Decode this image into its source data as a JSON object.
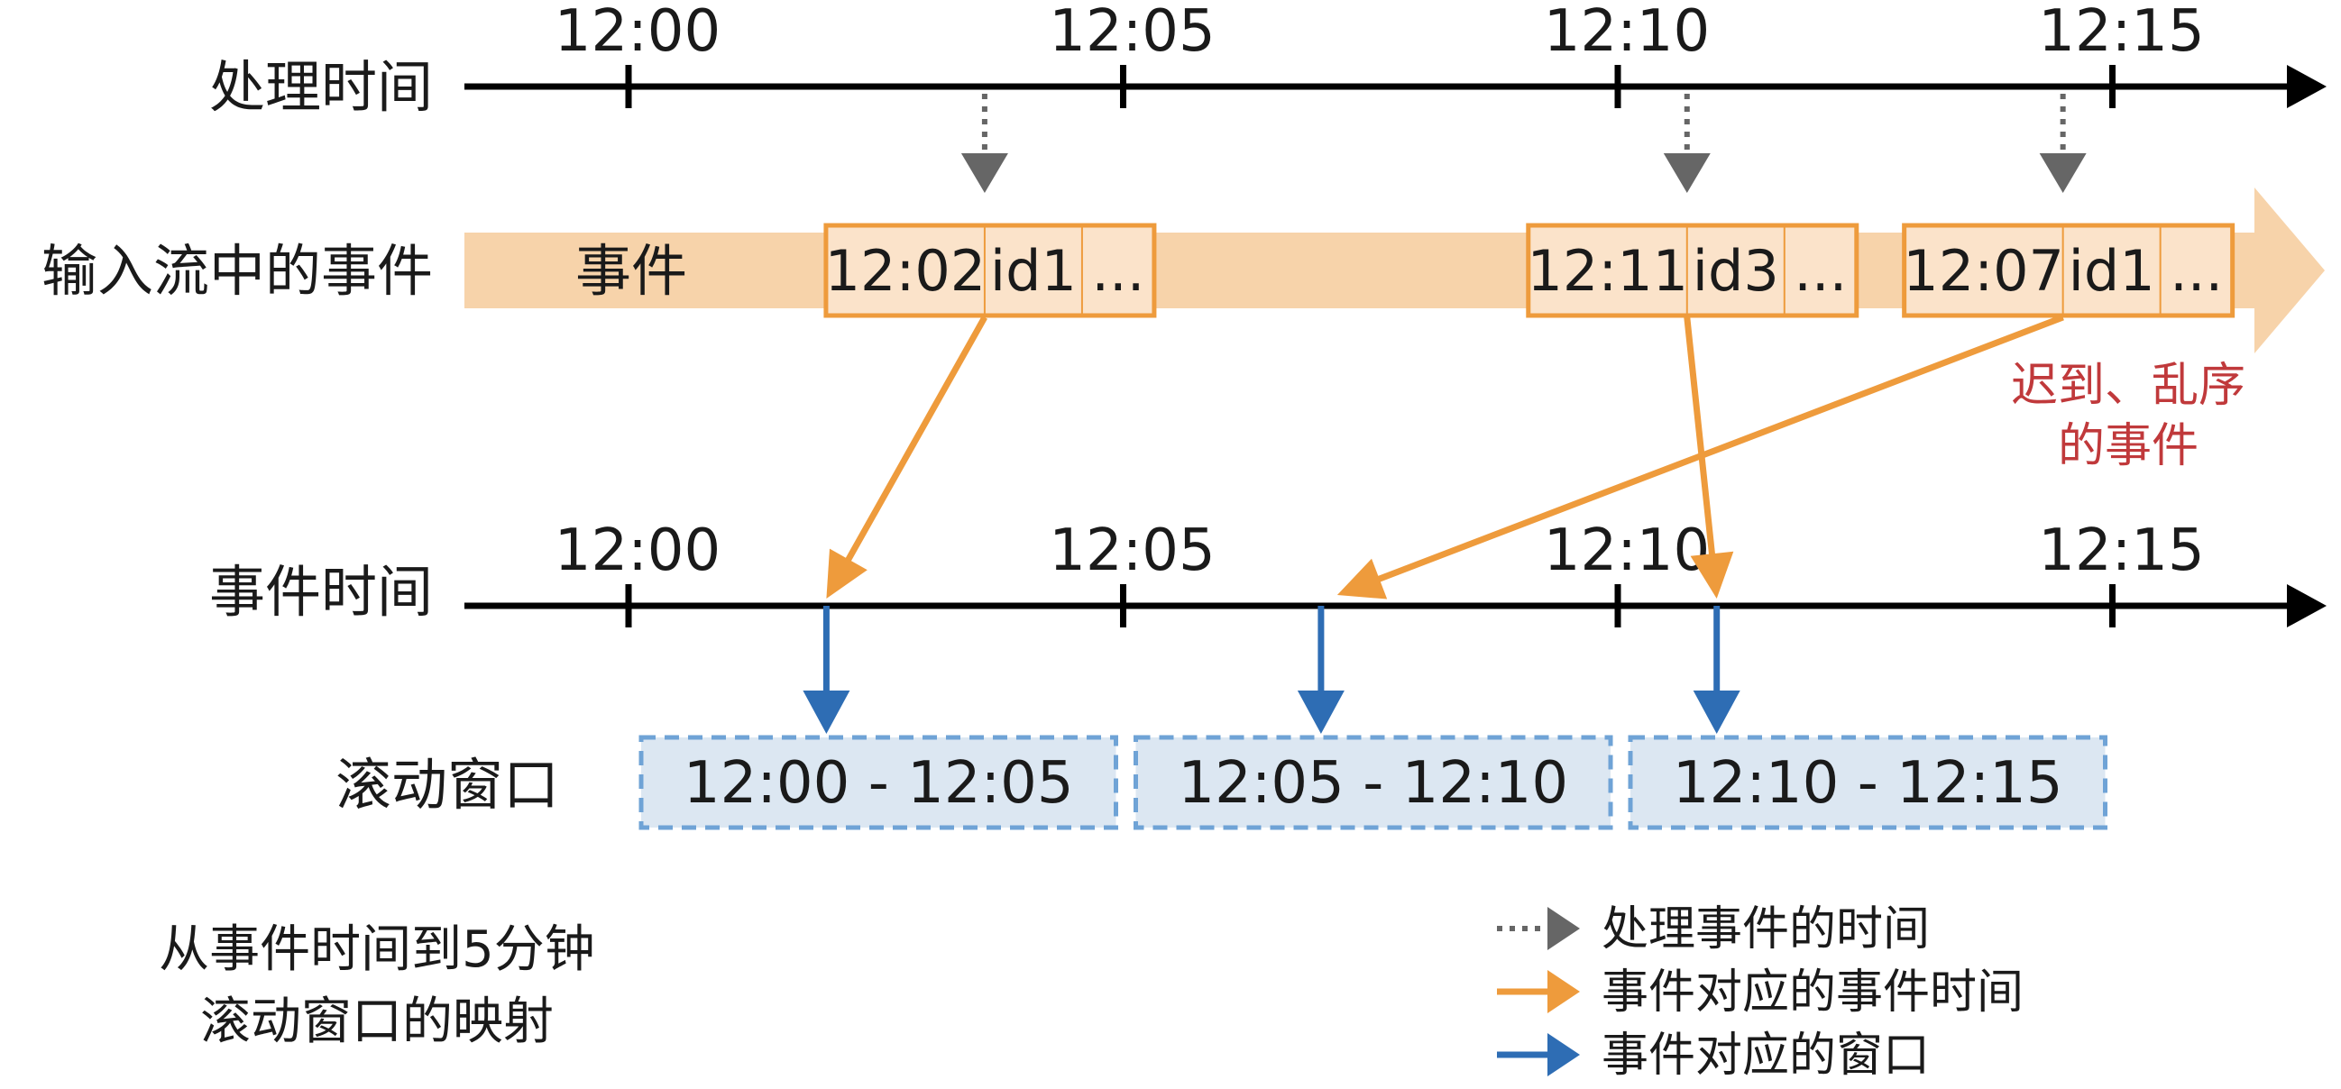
{
  "labels": {
    "processing_time": "处理时间",
    "event_stream": "输入流中的事件",
    "stream_tag": "事件",
    "event_time": "事件时间",
    "tumbling_windows": "滚动窗口",
    "late_line1": "迟到、乱序",
    "late_line2": "的事件",
    "caption_line1": "从事件时间到5分钟",
    "caption_line2": "滚动窗口的映射"
  },
  "processing_axis": {
    "ticks": [
      "12:00",
      "12:05",
      "12:10",
      "12:15"
    ]
  },
  "event_axis": {
    "ticks": [
      "12:00",
      "12:05",
      "12:10",
      "12:15"
    ]
  },
  "events": [
    {
      "time": "12:02",
      "id": "id1",
      "more": "...",
      "processing_minute": 3.6,
      "event_minute": 2,
      "late": false
    },
    {
      "time": "12:11",
      "id": "id3",
      "more": "...",
      "processing_minute": 10.7,
      "event_minute": 11,
      "late": false
    },
    {
      "time": "12:07",
      "id": "id1",
      "more": "...",
      "processing_minute": 14.5,
      "event_minute": 7,
      "late": true
    }
  ],
  "windows": [
    {
      "label": "12:00 - 12:05",
      "start_minute": 0,
      "end_minute": 5
    },
    {
      "label": "12:05 - 12:10",
      "start_minute": 5,
      "end_minute": 10
    },
    {
      "label": "12:10 - 12:15",
      "start_minute": 10,
      "end_minute": 15
    }
  ],
  "legend": [
    {
      "label": "处理事件的时间",
      "style": "dotted",
      "color": "#666666"
    },
    {
      "label": "事件对应的事件时间",
      "style": "solid",
      "color": "#EE9B3C"
    },
    {
      "label": "事件对应的窗口",
      "style": "solid",
      "color": "#2E6DB4"
    }
  ],
  "colors": {
    "axis": "#000000",
    "stream": "#F7D3AA",
    "event_box_fill": "#FBE3CA",
    "event_box_stroke": "#EE9B3C",
    "orange_arrow": "#EE9B3C",
    "blue_arrow": "#2E6DB4",
    "window_fill": "#DCE7F2",
    "window_stroke": "#6FA3D6",
    "late_note": "#C0393B",
    "dotted": "#666666"
  }
}
